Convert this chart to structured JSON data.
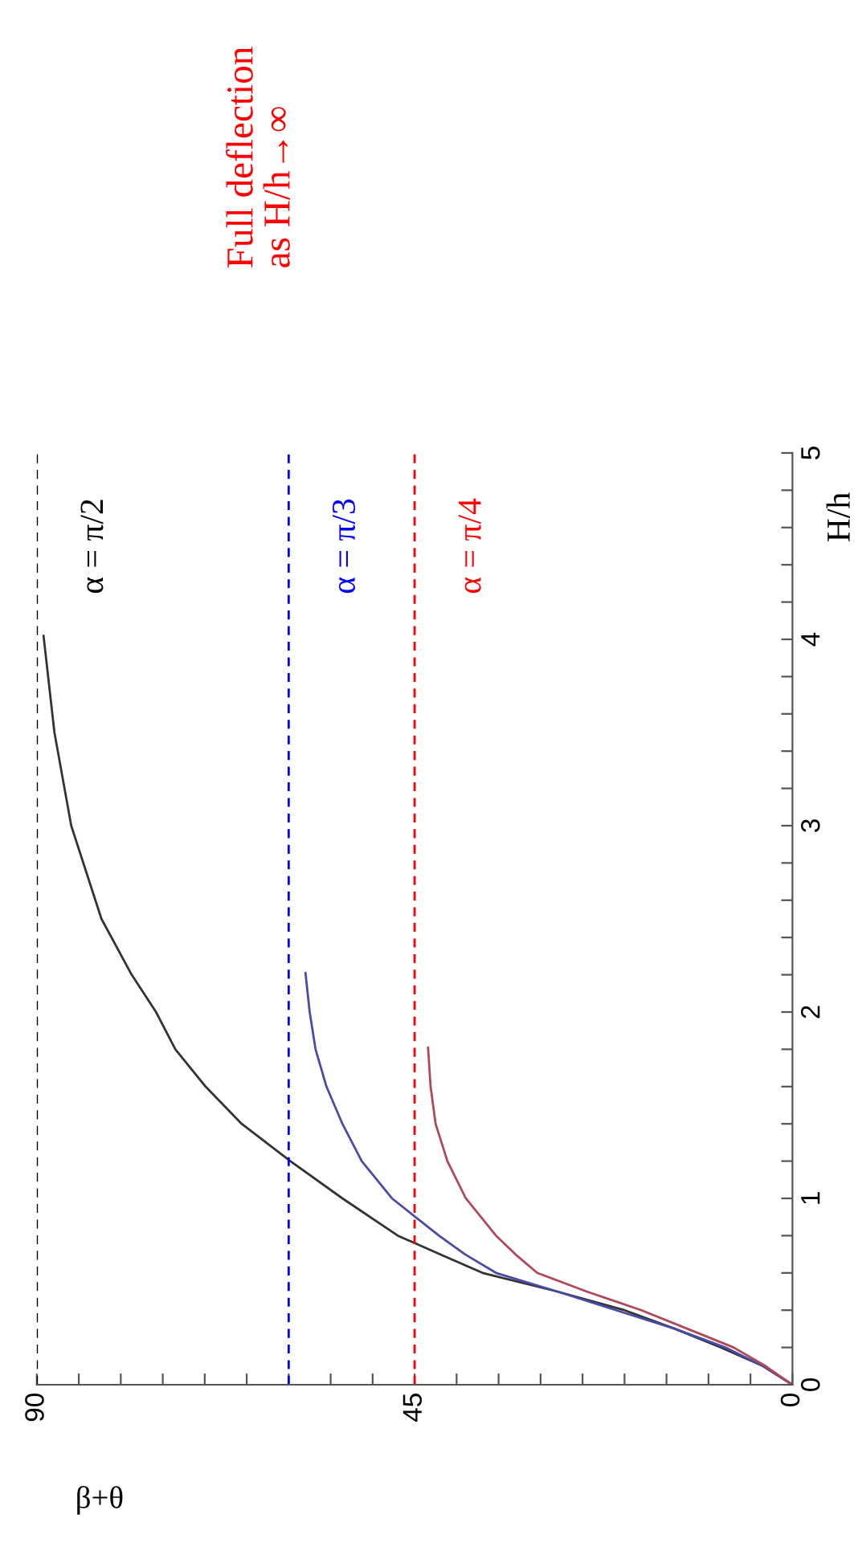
{
  "chart_data": {
    "type": "line",
    "xlabel": "β+θ",
    "ylabel": "H/h",
    "annotations": [
      "Full deflection\nas H/h→∞"
    ],
    "xlim": [
      90,
      0
    ],
    "ylim": [
      0,
      5
    ],
    "xticks": [
      0,
      {
        "value": 5,
        "label": null
      },
      {
        "value": 10,
        "label": null
      },
      {
        "value": 15,
        "label": null
      },
      {
        "value": 20,
        "label": null
      },
      {
        "value": 25,
        "label": null
      },
      {
        "value": 30,
        "label": null
      },
      {
        "value": 35,
        "label": null
      },
      {
        "value": 40,
        "label": null
      },
      45,
      {
        "value": 50,
        "label": null
      },
      {
        "value": 55,
        "label": null
      },
      {
        "value": 60,
        "label": null
      },
      {
        "value": 65,
        "label": null
      },
      {
        "value": 70,
        "label": null
      },
      {
        "value": 75,
        "label": null
      },
      {
        "value": 80,
        "label": null
      },
      {
        "value": 85,
        "label": null
      },
      90
    ],
    "yticks": [
      0,
      {
        "value": 0.2,
        "label": null
      },
      {
        "value": 0.4,
        "label": null
      },
      {
        "value": 0.6,
        "label": null
      },
      {
        "value": 0.8,
        "label": null
      },
      1,
      {
        "value": 1.2,
        "label": null
      },
      {
        "value": 1.4,
        "label": null
      },
      {
        "value": 1.6,
        "label": null
      },
      {
        "value": 1.8,
        "label": null
      },
      2,
      {
        "value": 2.2,
        "label": null
      },
      {
        "value": 2.4,
        "label": null
      },
      {
        "value": 2.6,
        "label": null
      },
      {
        "value": 2.8,
        "label": null
      },
      3,
      {
        "value": 3.2,
        "label": null
      },
      {
        "value": 3.4,
        "label": null
      },
      {
        "value": 3.6,
        "label": null
      },
      {
        "value": 3.8,
        "label": null
      },
      4,
      {
        "value": 4.2,
        "label": null
      },
      {
        "value": 4.4,
        "label": null
      },
      {
        "value": 4.6,
        "label": null
      },
      {
        "value": 4.8,
        "label": null
      },
      5
    ],
    "series": [
      {
        "color": "#333333",
        "x": [
          0,
          3.5,
          8.5,
          14,
          20,
          28,
          36.9,
          42,
          47,
          53.6,
          59.8,
          65.6,
          69.9,
          73.5,
          75.8,
          78.7,
          82.3,
          85.9,
          87.9,
          89.2
        ],
        "values": [
          0,
          0.1,
          0.2,
          0.3,
          0.4,
          0.5,
          0.6,
          0.7,
          0.8,
          1.0,
          1.2,
          1.4,
          1.6,
          1.8,
          2.0,
          2.2,
          2.5,
          3.0,
          3.5,
          4.02
        ]
      },
      {
        "color": "#4a4aa8",
        "x": [
          0,
          3.5,
          8,
          14,
          21,
          28,
          35.3,
          39,
          42.1,
          47.7,
          51.3,
          53.6,
          55.5,
          56.8,
          57.5,
          58.0
        ],
        "values": [
          0,
          0.1,
          0.2,
          0.3,
          0.4,
          0.5,
          0.6,
          0.7,
          0.8,
          1.0,
          1.2,
          1.4,
          1.6,
          1.8,
          2.0,
          2.21
        ]
      },
      {
        "color": "#b04858",
        "x": [
          0,
          3.2,
          7,
          12.5,
          18,
          24.5,
          30.4,
          33,
          35.3,
          38.9,
          41.1,
          42.5,
          43.1,
          43.4
        ],
        "values": [
          0,
          0.1,
          0.2,
          0.3,
          0.4,
          0.5,
          0.6,
          0.7,
          0.8,
          1.0,
          1.2,
          1.4,
          1.6,
          1.81
        ]
      }
    ],
    "ref_lines": [
      {
        "axis": "x",
        "value": 90,
        "label": "α = π/2",
        "color": "#000000",
        "line_style": "dashed"
      },
      {
        "axis": "x",
        "value": 60,
        "label": "α = π/3",
        "color": "#0000ff",
        "line_style": "dashed"
      },
      {
        "axis": "x",
        "value": 45,
        "label": "α = π/4",
        "color": "#ff0000",
        "line_style": "dashed"
      }
    ],
    "grid": false
  }
}
